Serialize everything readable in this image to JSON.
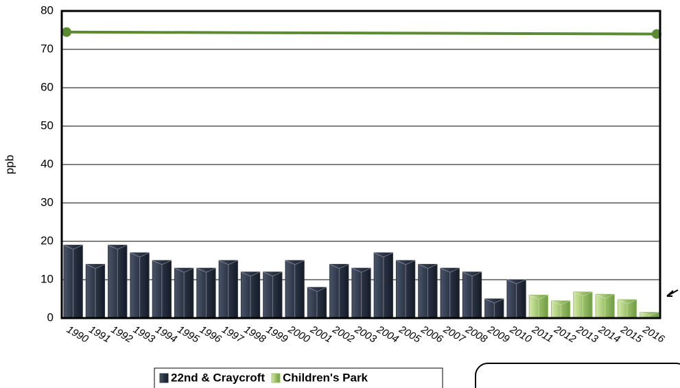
{
  "chart_data": {
    "type": "bar",
    "y_label": "ppb",
    "categories": [
      "1990",
      "1991",
      "1992",
      "1993",
      "1994",
      "1995",
      "1996",
      "1997",
      "1998",
      "1999",
      "2000",
      "2001",
      "2002",
      "2003",
      "2004",
      "2005",
      "2006",
      "2007",
      "2008",
      "2009",
      "2010",
      "2011",
      "2012",
      "2013",
      "2014",
      "2015",
      "2016"
    ],
    "series": [
      {
        "name": "22nd & Craycroft",
        "color": "#2b3445",
        "values": [
          19,
          14,
          19,
          17,
          15,
          13,
          13,
          15,
          12,
          12,
          15,
          8,
          14,
          13,
          17,
          15,
          14,
          13,
          12,
          5,
          10,
          null,
          null,
          null,
          null,
          null,
          null
        ]
      },
      {
        "name": "Children's Park",
        "color": "#9cc06a",
        "values": [
          null,
          null,
          null,
          null,
          null,
          null,
          null,
          null,
          null,
          null,
          null,
          null,
          null,
          null,
          null,
          null,
          null,
          null,
          null,
          null,
          null,
          6,
          4.5,
          6.8,
          6.2,
          4.8,
          1.5
        ]
      }
    ],
    "reference_line": {
      "color": "#5a8a32",
      "values": [
        74.5,
        74
      ]
    },
    "ylim": [
      0,
      80
    ],
    "yticks": [
      0,
      10,
      20,
      30,
      40,
      50,
      60,
      70,
      80
    ],
    "grid": true
  }
}
